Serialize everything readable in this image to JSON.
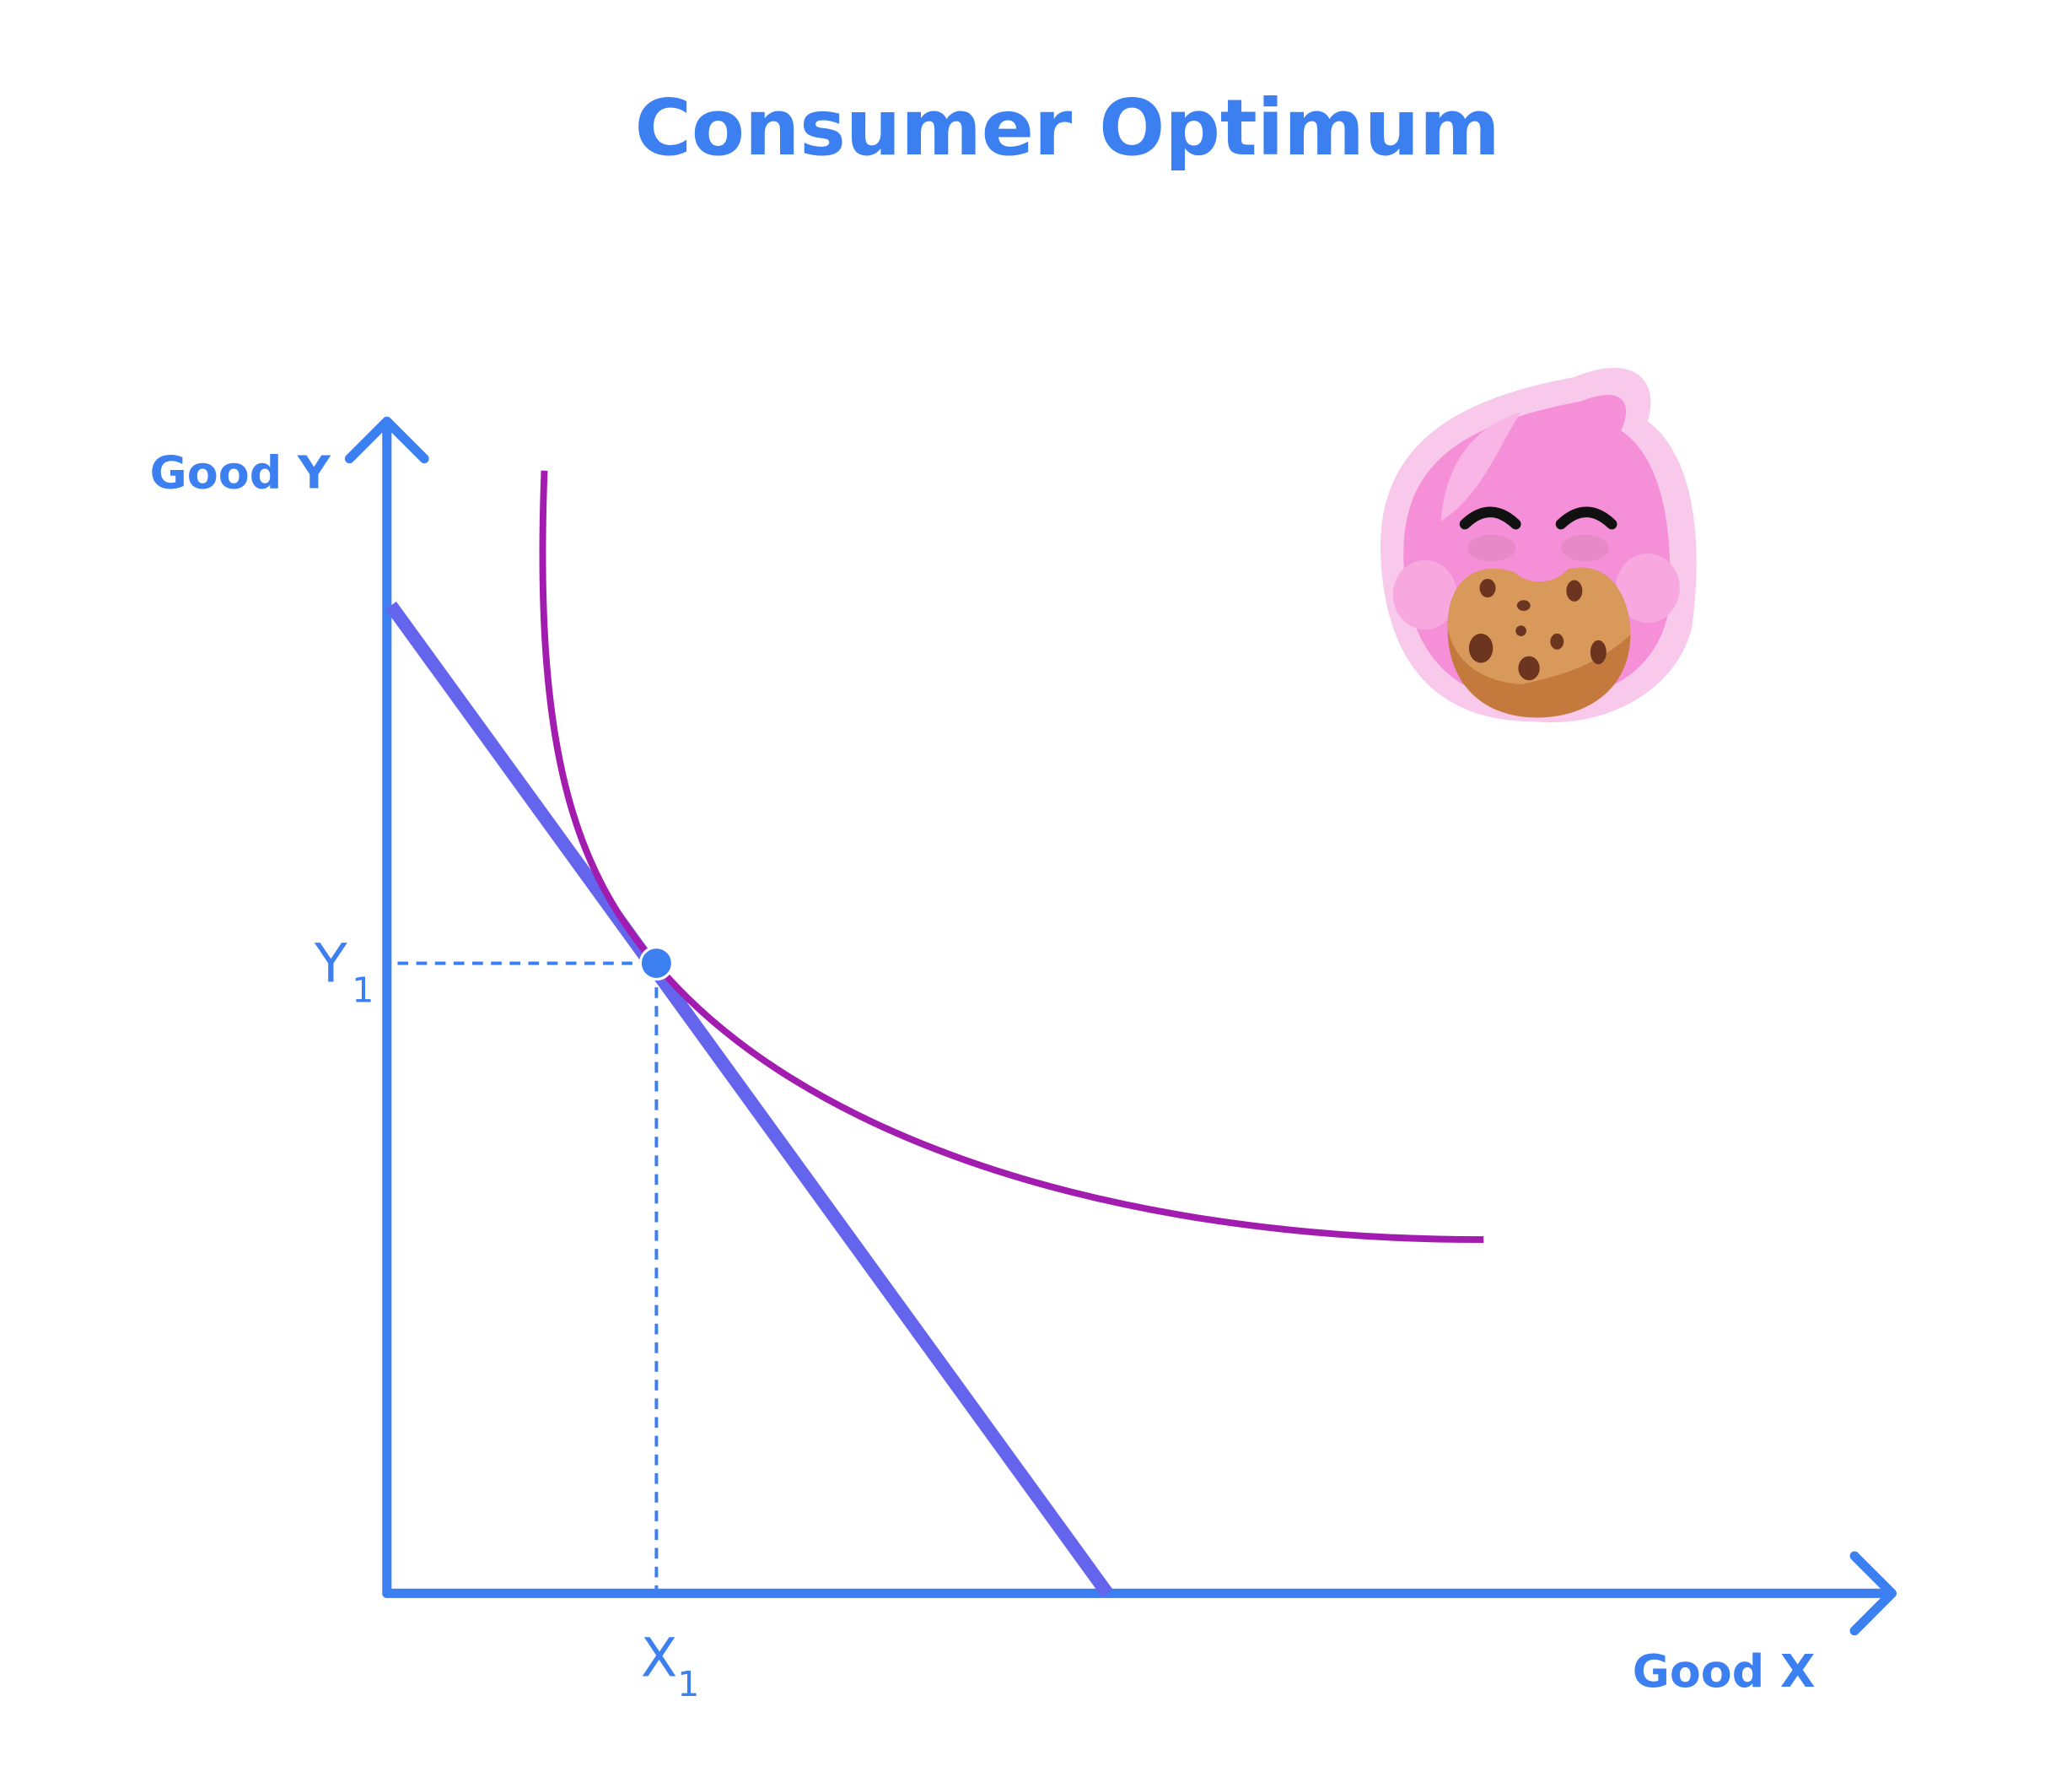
{
  "title": "Consumer Optimum",
  "y_axis": {
    "label": "Good Y"
  },
  "x_axis": {
    "label": "Good X"
  },
  "optimum": {
    "y_label": {
      "text": "Y",
      "subscript": "1"
    },
    "x_label": {
      "text": "X",
      "subscript": "1"
    }
  }
}
